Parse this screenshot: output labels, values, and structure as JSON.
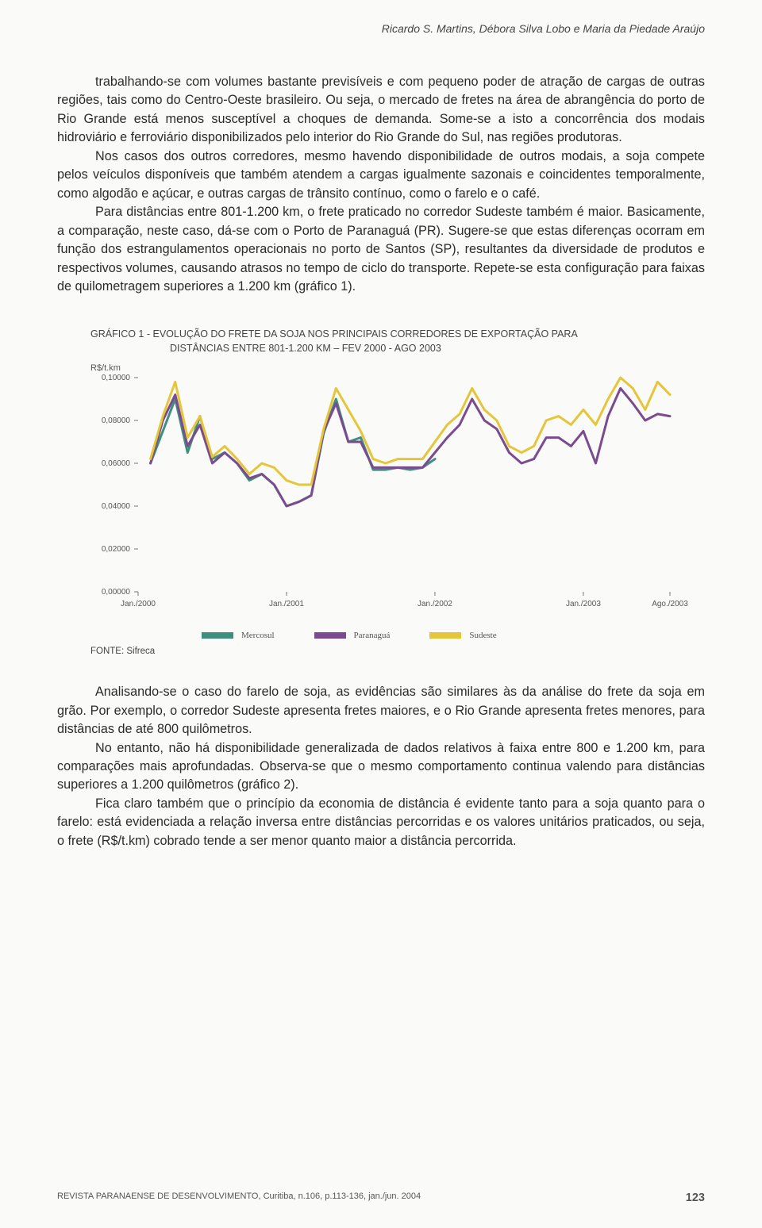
{
  "header": {
    "authors": "Ricardo S. Martins, Débora Silva Lobo e Maria da Piedade Araújo"
  },
  "body": {
    "p1": "trabalhando-se com volumes bastante previsíveis e com pequeno poder de atração de cargas de outras regiões, tais como do Centro-Oeste brasileiro. Ou seja, o mercado de fretes na área de abrangência do porto de Rio Grande está menos susceptível a choques de demanda. Some-se a isto a concorrência dos modais hidroviário e ferroviário disponibilizados pelo interior do Rio Grande do Sul, nas regiões produtoras.",
    "p2": "Nos casos dos outros corredores, mesmo havendo disponibilidade de outros modais, a soja compete pelos veículos disponíveis que também atendem a cargas igualmente sazonais e coincidentes temporalmente, como algodão e açúcar, e outras cargas de trânsito contínuo, como o farelo e o café.",
    "p3": "Para distâncias entre 801-1.200 km, o frete praticado no corredor Sudeste também é maior. Basicamente, a comparação, neste caso, dá-se com o Porto de Paranaguá (PR). Sugere-se que estas diferenças ocorram em função dos estrangulamentos operacionais no porto de Santos (SP), resultantes da diversidade de produtos e respectivos volumes, causando atrasos no tempo de ciclo do transporte. Repete-se esta configuração para faixas de quilometragem superiores a 1.200 km (gráfico 1).",
    "p4": "Analisando-se o caso do farelo de soja, as evidências são similares às da análise do frete da soja em grão. Por exemplo, o corredor Sudeste apresenta fretes maiores, e o Rio Grande apresenta fretes menores, para distâncias de até 800 quilômetros.",
    "p5": "No entanto, não há disponibilidade generalizada de dados relativos à faixa entre 800 e 1.200 km, para comparações mais aprofundadas. Observa-se que o mesmo comportamento continua valendo para distâncias superiores a 1.200 quilômetros (gráfico 2).",
    "p6": "Fica claro também que o princípio da economia de distância é evidente tanto para a soja quanto para o farelo: está evidenciada a relação inversa entre distâncias percorridas e os valores unitários praticados, ou seja, o frete (R$/t.km) cobrado tende a ser menor quanto maior a distância percorrida."
  },
  "chart": {
    "type": "line",
    "title_line1": "GRÁFICO 1 - EVOLUÇÃO DO FRETE DA SOJA NOS PRINCIPAIS CORREDORES DE EXPORTAÇÃO PARA",
    "title_line2": "DISTÂNCIAS ENTRE 801-1.200 KM – FEV 2000 - AGO 2003",
    "y_unit": "R$/t.km",
    "ylim": [
      0,
      0.1
    ],
    "ytick_labels": [
      "0,00000",
      "0,02000",
      "0,04000",
      "0,06000",
      "0,08000",
      "0,10000"
    ],
    "ytick_values": [
      0,
      0.02,
      0.04,
      0.06,
      0.08,
      0.1
    ],
    "x_labels": [
      "Jan./2000",
      "Jan./2001",
      "Jan./2002",
      "Jan./2003",
      "Ago./2003"
    ],
    "x_positions": [
      0,
      12,
      24,
      36,
      43
    ],
    "x_extent": 43,
    "line_width": 3,
    "background_color": "#fafaf8",
    "axis_color": "#777",
    "series": {
      "mercosul": {
        "label": "Mercosul",
        "color": "#3f8f7f",
        "points": [
          [
            1,
            0.06
          ],
          [
            2,
            0.075
          ],
          [
            3,
            0.09
          ],
          [
            4,
            0.065
          ],
          [
            5,
            0.082
          ],
          [
            6,
            0.062
          ],
          [
            7,
            0.065
          ],
          [
            8,
            0.06
          ],
          [
            9,
            0.052
          ],
          [
            10,
            0.055
          ],
          [
            11,
            0.05
          ],
          [
            12,
            0.04
          ],
          [
            13,
            0.042
          ],
          [
            14,
            0.045
          ],
          [
            15,
            0.074
          ],
          [
            16,
            0.09
          ],
          [
            17,
            0.07
          ],
          [
            18,
            0.072
          ],
          [
            19,
            0.057
          ],
          [
            20,
            0.057
          ],
          [
            21,
            0.058
          ],
          [
            22,
            0.057
          ],
          [
            23,
            0.058
          ],
          [
            24,
            0.062
          ]
        ]
      },
      "paranagua": {
        "label": "Paranaguá",
        "color": "#7b4b8f",
        "points": [
          [
            1,
            0.06
          ],
          [
            2,
            0.08
          ],
          [
            3,
            0.092
          ],
          [
            4,
            0.068
          ],
          [
            5,
            0.078
          ],
          [
            6,
            0.06
          ],
          [
            7,
            0.065
          ],
          [
            8,
            0.06
          ],
          [
            9,
            0.053
          ],
          [
            10,
            0.055
          ],
          [
            11,
            0.05
          ],
          [
            12,
            0.04
          ],
          [
            13,
            0.042
          ],
          [
            14,
            0.045
          ],
          [
            15,
            0.075
          ],
          [
            16,
            0.088
          ],
          [
            17,
            0.07
          ],
          [
            18,
            0.07
          ],
          [
            19,
            0.058
          ],
          [
            20,
            0.058
          ],
          [
            21,
            0.058
          ],
          [
            22,
            0.058
          ],
          [
            23,
            0.058
          ],
          [
            24,
            0.065
          ],
          [
            25,
            0.072
          ],
          [
            26,
            0.078
          ],
          [
            27,
            0.09
          ],
          [
            28,
            0.08
          ],
          [
            29,
            0.076
          ],
          [
            30,
            0.065
          ],
          [
            31,
            0.06
          ],
          [
            32,
            0.062
          ],
          [
            33,
            0.072
          ],
          [
            34,
            0.072
          ],
          [
            35,
            0.068
          ],
          [
            36,
            0.075
          ],
          [
            37,
            0.06
          ],
          [
            38,
            0.082
          ],
          [
            39,
            0.095
          ],
          [
            40,
            0.088
          ],
          [
            41,
            0.08
          ],
          [
            42,
            0.083
          ],
          [
            43,
            0.082
          ]
        ]
      },
      "sudeste": {
        "label": "Sudeste",
        "color": "#e5c63a",
        "points": [
          [
            1,
            0.062
          ],
          [
            2,
            0.082
          ],
          [
            3,
            0.098
          ],
          [
            4,
            0.072
          ],
          [
            5,
            0.082
          ],
          [
            6,
            0.063
          ],
          [
            7,
            0.068
          ],
          [
            8,
            0.062
          ],
          [
            9,
            0.055
          ],
          [
            10,
            0.06
          ],
          [
            11,
            0.058
          ],
          [
            12,
            0.052
          ],
          [
            13,
            0.05
          ],
          [
            14,
            0.05
          ],
          [
            15,
            0.076
          ],
          [
            16,
            0.095
          ],
          [
            17,
            0.085
          ],
          [
            18,
            0.075
          ],
          [
            19,
            0.062
          ],
          [
            20,
            0.06
          ],
          [
            21,
            0.062
          ],
          [
            22,
            0.062
          ],
          [
            23,
            0.062
          ],
          [
            24,
            0.07
          ],
          [
            25,
            0.078
          ],
          [
            26,
            0.083
          ],
          [
            27,
            0.095
          ],
          [
            28,
            0.085
          ],
          [
            29,
            0.08
          ],
          [
            30,
            0.068
          ],
          [
            31,
            0.065
          ],
          [
            32,
            0.068
          ],
          [
            33,
            0.08
          ],
          [
            34,
            0.082
          ],
          [
            35,
            0.078
          ],
          [
            36,
            0.085
          ],
          [
            37,
            0.078
          ],
          [
            38,
            0.09
          ],
          [
            39,
            0.1
          ],
          [
            40,
            0.095
          ],
          [
            41,
            0.085
          ],
          [
            42,
            0.098
          ],
          [
            43,
            0.092
          ]
        ]
      }
    },
    "source": "FONTE: Sifreca"
  },
  "footer": {
    "ref": "REVISTA PARANAENSE DE DESENVOLVIMENTO, Curitiba, n.106, p.113-136, jan./jun. 2004",
    "page": "123"
  }
}
